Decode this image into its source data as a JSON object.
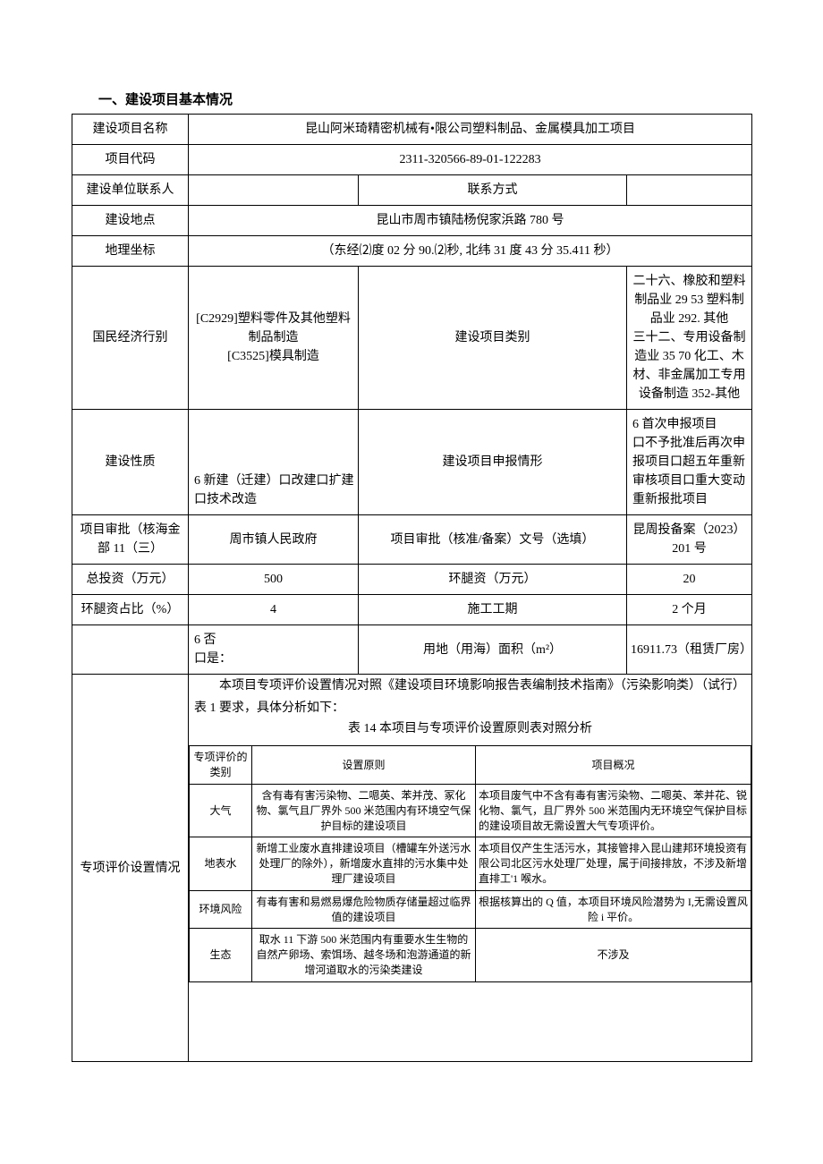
{
  "section_title": "一、建设项目基本情况",
  "rows": {
    "project_name_label": "建设项目名称",
    "project_name_value": "昆山阿米琦精密机械有•限公司塑料制品、金属模具加工项目",
    "project_code_label": "项目代码",
    "project_code_value": "2311-320566-89-01-122283",
    "contact_person_label": "建设单位联系人",
    "contact_person_value": "",
    "contact_method_label": "联系方式",
    "contact_method_value": "",
    "location_label": "建设地点",
    "location_value": "昆山市周市镇陆杨倪家浜路 780 号",
    "geo_label": "地理坐标",
    "geo_value": "（东经⑵度 02 分 90.⑵秒, 北纬 31 度 43 分 35.411 秒）",
    "industry_label": "国民经济行别",
    "industry_value": "[C2929]塑料零件及其他塑料制品制造\n[C3525]模具制造",
    "project_type_label": "建设项目类别",
    "project_type_value": "二十六、橡胶和塑料制品业 29 53 塑料制品业 292. 其他\n三十二、专用设备制造业 35 70 化工、木材、非金属加工专用设备制造 352-其他",
    "nature_label": "建设性质",
    "nature_value": "6 新建（迁建）口改建口扩建口技术改造",
    "report_type_label": "建设项目申报情形",
    "report_type_value": "6 首次申报项目\n口不予批准后再次申报项目口超五年重新审核项目口重大变动重新报批项目",
    "approval_dept_label": "项目审批（核海金部 11（三）",
    "approval_dept_value": "周市镇人民政府",
    "approval_no_label": "项目审批（核准/备案）文号（选填）",
    "approval_no_value": "昆周投备案（2023）201 号",
    "total_invest_label": "总投资（万元）",
    "total_invest_value": "500",
    "env_invest_label": "环腿资（万元）",
    "env_invest_value": "20",
    "env_ratio_label": "环腿资占比（%）",
    "env_ratio_value": "4",
    "period_label": "施工工期",
    "period_value": "2 个月",
    "sea_label": "",
    "sea_value": "6 否\n口是：",
    "area_label": "用地（用海）面积（m²）",
    "area_value": "16911.73（租赁厂房）",
    "special_label": "专项评价设置情况",
    "special_intro": "本项目专项评价设置情况对照《建设项目环境影响报告表编制技术指南》（污染影响类）（试行）表 1 要求，具体分析如下：",
    "special_table_title": "表 14 本项目与专项评价设置原则表对照分析"
  },
  "inner_table": {
    "headers": [
      "专项评价的类别",
      "设置原则",
      "项目概况"
    ],
    "rows": [
      {
        "cat": "大气",
        "principle": "含有毒有害污染物、二嗯英、苯并茂、冢化物、氯气且厂界外 500 米范围内有环境空气保护目标的建设项目",
        "situation": "本项目废气中不含有毒有害污染物、二嗯英、苯并花、锐化物、氯气，且厂界外 500 米范围内无环境空气保护目标的建设项目故无需设置大气专项评价。"
      },
      {
        "cat": "地表水",
        "principle": "新增工业废水直排建设项目（槽罐车外送污水处理厂的除外），新增废水直排的污水集中处理厂建设项目",
        "situation": "本项目仅产生生活污水，其接管排入昆山建邦环境投资有限公司北区污水处理厂处理，属于间接排放，不涉及新增直排工'1 喉水。"
      },
      {
        "cat": "环境风险",
        "principle": "有毒有害和易燃易爆危险物质存储量超过临界值的建设项目",
        "situation": "根据核算出的 Q 值，本项目环境风险潜势为 I,无需设置风险 i 平价。"
      },
      {
        "cat": "生态",
        "principle": "取水 11 下游 500 米范围内有重要水生生物的自然产卵场、索饵场、越冬场和泡游通道的新增河道取水的污染类建设",
        "situation": "不涉及"
      }
    ]
  },
  "layout": {
    "col_widths": [
      "130",
      "190",
      "140",
      "160",
      "140"
    ],
    "inner_col_widths": [
      "70",
      "240",
      "250"
    ]
  },
  "colors": {
    "text": "#000000",
    "background": "#ffffff",
    "border": "#000000"
  },
  "fonts": {
    "body_size": 14,
    "inner_size": 12,
    "title_size": 15
  }
}
